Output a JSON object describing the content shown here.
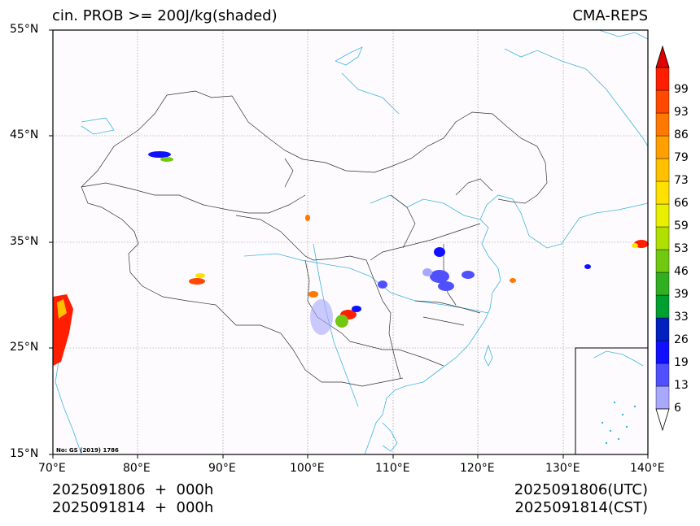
{
  "header": {
    "title_left": "cin. PROB >= 200J/kg(shaded)",
    "title_right": "CMA-REPS"
  },
  "footer": {
    "left_line1": "2025091806  +  000h",
    "left_line2": "2025091814  +  000h",
    "right_line1": "2025091806(UTC)",
    "right_line2": "2025091814(CST)"
  },
  "map": {
    "lon_range": [
      70,
      140
    ],
    "lat_range": [
      15,
      55
    ],
    "lon_ticks": [
      "70°E",
      "80°E",
      "90°E",
      "100°E",
      "110°E",
      "120°E",
      "130°E",
      "140°E"
    ],
    "lat_ticks": [
      "15°N",
      "25°N",
      "35°N",
      "45°N",
      "55°N"
    ],
    "approval_no": "No: GS (2019) 1786",
    "colors": {
      "border": "#333333",
      "river_coast": "#3fb6e0",
      "grid": "#888888",
      "background": "#fdfbfd"
    }
  },
  "colorbar": {
    "levels": [
      "6",
      "13",
      "19",
      "26",
      "33",
      "39",
      "46",
      "53",
      "59",
      "66",
      "73",
      "79",
      "86",
      "93",
      "99"
    ],
    "colors": [
      "#a8a8ff",
      "#5050ff",
      "#1010ff",
      "#0020c0",
      "#00a030",
      "#30b020",
      "#70c810",
      "#b0e000",
      "#e8f000",
      "#ffe000",
      "#ffc000",
      "#ffa000",
      "#ff7800",
      "#ff4800",
      "#ff1e00",
      "#e00000"
    ]
  }
}
